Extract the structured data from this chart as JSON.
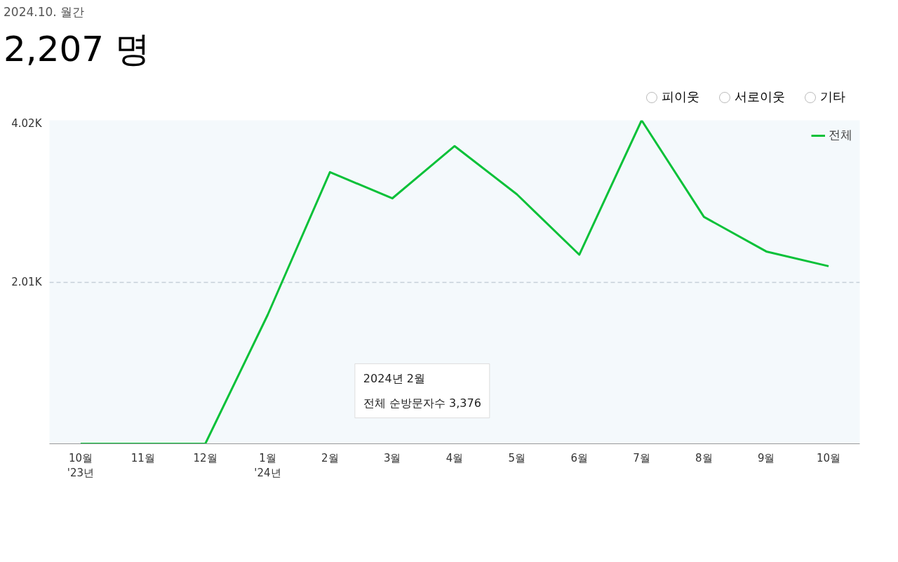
{
  "chart_data": {
    "type": "line",
    "subtitle": "2024.10. 월간",
    "title": "2,207 명",
    "categories": [
      "10월\n'23년",
      "11월",
      "12월",
      "1월\n'24년",
      "2월",
      "3월",
      "4월",
      "5월",
      "6월",
      "7월",
      "8월",
      "9월",
      "10월"
    ],
    "series": [
      {
        "name": "전체",
        "color": "#0ac139",
        "values": [
          0,
          0,
          0,
          1600,
          3376,
          3050,
          3700,
          3100,
          2350,
          4020,
          2820,
          2390,
          2207
        ]
      }
    ],
    "ylim": [
      0,
      4020
    ],
    "yticks": [
      {
        "value": 0,
        "label": null
      },
      {
        "value": 2010,
        "label": "2.01K"
      },
      {
        "value": 4020,
        "label": "4.02K"
      }
    ],
    "grid": "y",
    "legend": "top right",
    "marker": "none",
    "line_style": "solid",
    "annotations": [
      "피이웃",
      "서로이웃",
      "기타",
      "2024년 2월\n전체 순방문자수 3,376"
    ]
  }
}
